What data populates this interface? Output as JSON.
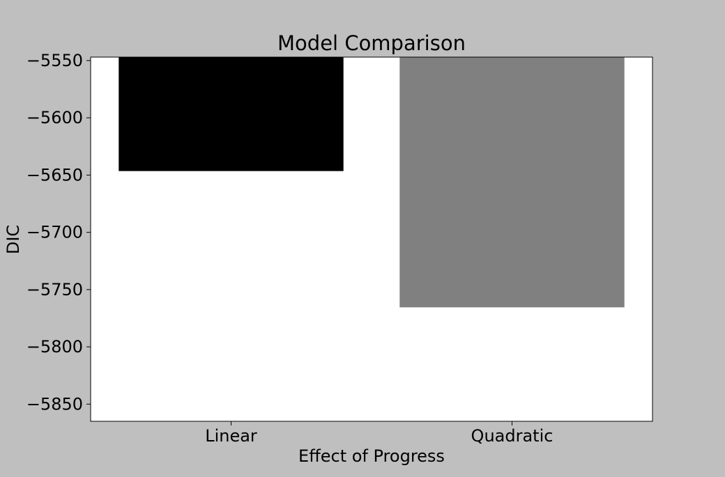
{
  "chart_data": {
    "type": "bar",
    "title": "Model Comparison",
    "xlabel": "Effect of Progress",
    "ylabel": "DIC",
    "categories": [
      "Linear",
      "Quadratic"
    ],
    "values": [
      -5646.5,
      -5765.5
    ],
    "bar_colors": [
      "#000000",
      "#808080"
    ],
    "ylim": [
      -5865,
      -5547
    ],
    "yticks": [
      -5550,
      -5600,
      -5650,
      -5700,
      -5750,
      -5800,
      -5850
    ],
    "ytick_labels": [
      "−5550",
      "−5600",
      "−5650",
      "−5700",
      "−5750",
      "−5800",
      "−5850"
    ],
    "grid": false,
    "legend": "none",
    "background_color": "#bfbfbf",
    "plot_background_color": "#ffffff"
  }
}
